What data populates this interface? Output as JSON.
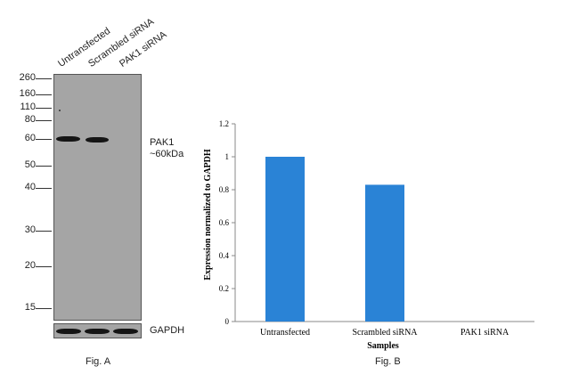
{
  "blot": {
    "lanes": [
      "Untransfected",
      "Scrambled siRNA",
      "PAK1 siRNA"
    ],
    "mw_markers": [
      "260",
      "160",
      "110",
      "80",
      "60",
      "50",
      "40",
      "30",
      "20",
      "15"
    ],
    "target_label_line1": "PAK1",
    "target_label_line2": "~60kDa",
    "loading_control": "GAPDH",
    "figure_label": "Fig. A"
  },
  "chart_data": {
    "type": "bar",
    "categories": [
      "Untransfected",
      "Scrambled siRNA",
      "PAK1 siRNA"
    ],
    "values": [
      1.0,
      0.83,
      0.0
    ],
    "xlabel": "Samples",
    "ylabel": "Expression normalized to GAPDH",
    "ylim": [
      0,
      1.2
    ],
    "yticks": [
      "0",
      "0.2",
      "0.4",
      "0.6",
      "0.8",
      "1",
      "1.2"
    ],
    "bar_color": "#2a83d6",
    "grid": false,
    "figure_label": "Fig. B"
  }
}
